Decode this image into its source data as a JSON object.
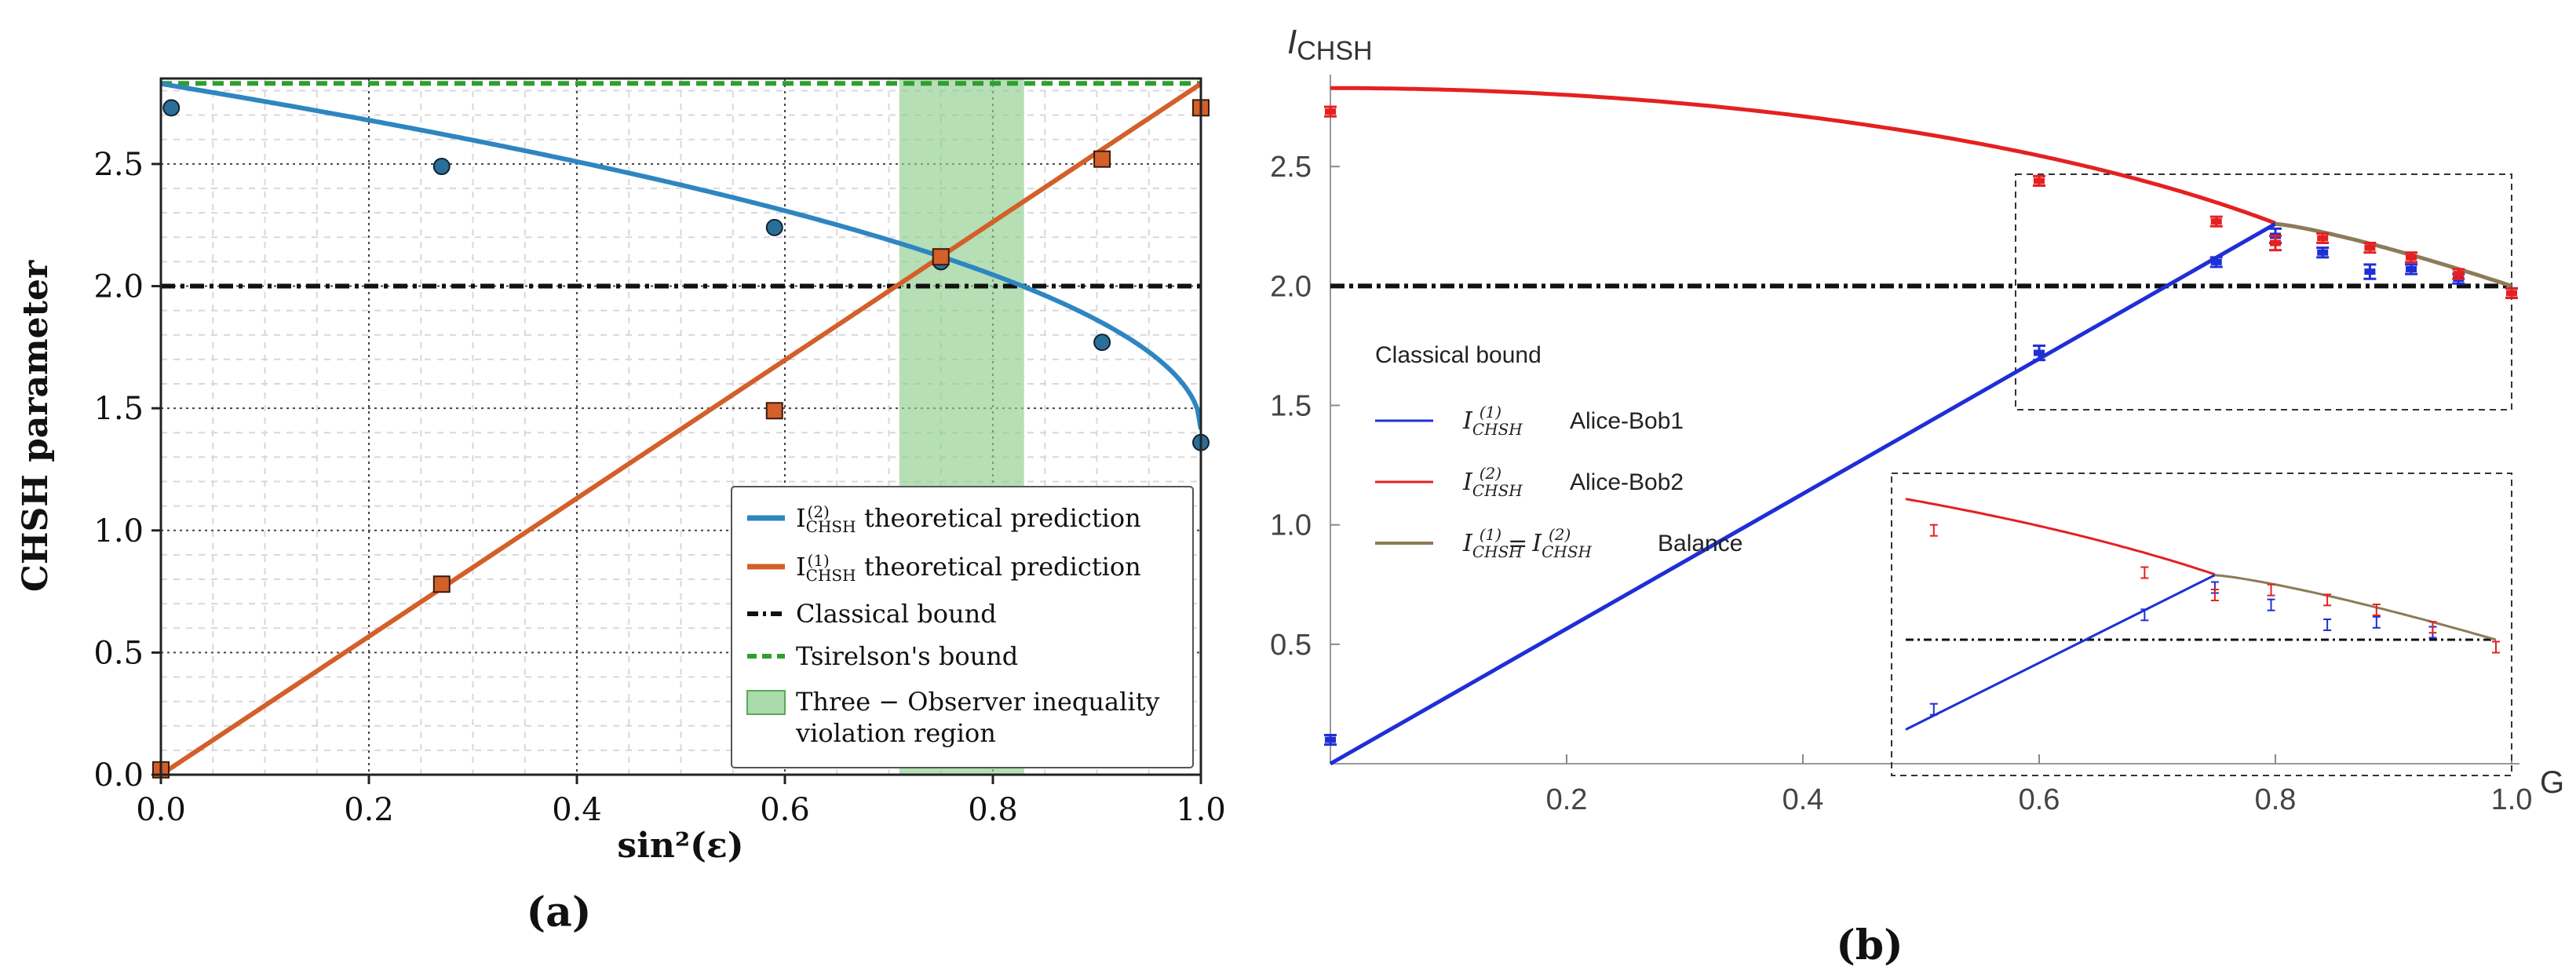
{
  "chart_data": [
    {
      "id": "a",
      "type": "line",
      "panel_label": "(a)",
      "xlabel": "sin²(ε)",
      "ylabel": "CHSH parameter",
      "xlim": [
        0,
        1
      ],
      "ylim": [
        0,
        2.85
      ],
      "xticks": [
        "0.0",
        "0.2",
        "0.4",
        "0.6",
        "0.8",
        "1.0"
      ],
      "xtick_values": [
        0,
        0.2,
        0.4,
        0.6,
        0.8,
        1.0
      ],
      "yticks": [
        "0.0",
        "0.5",
        "1.0",
        "1.5",
        "2.0",
        "2.5"
      ],
      "ytick_values": [
        0,
        0.5,
        1.0,
        1.5,
        2.0,
        2.5
      ],
      "grid": true,
      "legend_position": "bottom-right",
      "region": {
        "x_from": 0.71,
        "x_to": 0.83,
        "color": "#8fce8f"
      },
      "classical_bound": 2.0,
      "tsirelson_bound": 2.83,
      "theory_i2": {
        "color": "#2e86c1"
      },
      "theory_i1": {
        "color": "#d35f29"
      },
      "series": [
        {
          "name": "I_CHSH^(2) data",
          "marker": "circle",
          "color": "#2a6f97",
          "x": [
            0.01,
            0.27,
            0.59,
            0.75,
            0.905,
            1.0
          ],
          "y": [
            2.73,
            2.49,
            2.24,
            2.1,
            1.77,
            1.36
          ]
        },
        {
          "name": "I_CHSH^(1) data",
          "marker": "square",
          "color": "#d35f29",
          "x": [
            0.0,
            0.27,
            0.59,
            0.75,
            0.905,
            1.0
          ],
          "y": [
            0.02,
            0.78,
            1.49,
            2.12,
            2.52,
            2.73
          ]
        }
      ],
      "legend": {
        "i2": {
          "main": "I",
          "sub": "CHSH",
          "sup": "(2)",
          "text": "theoretical prediction"
        },
        "i1": {
          "main": "I",
          "sub": "CHSH",
          "sup": "(1)",
          "text": "theoretical prediction"
        },
        "classical": "Classical bound",
        "tsirelson": "Tsirelson's bound",
        "region_line1": "Three − Observer inequality",
        "region_line2": "violation region"
      }
    },
    {
      "id": "b",
      "type": "line",
      "panel_label": "(b)",
      "xlabel": "G",
      "ylabel": {
        "main": "I",
        "sub": "CHSH"
      },
      "xlim": [
        0,
        1
      ],
      "ylim": [
        0,
        3.0
      ],
      "xticks": [
        "0.2",
        "0.4",
        "0.6",
        "0.8",
        "1.0"
      ],
      "xtick_values": [
        0.2,
        0.4,
        0.6,
        0.8,
        1.0
      ],
      "yticks": [
        "0.5",
        "1.0",
        "1.5",
        "2.0",
        "2.5"
      ],
      "ytick_values": [
        0.5,
        1.0,
        1.5,
        2.0,
        2.5
      ],
      "classical_bound": 2.0,
      "colors": {
        "alice_bob1": "#1f2fd6",
        "alice_bob2": "#e52020",
        "balance": "#8b7b57"
      },
      "series": [
        {
          "name": "Alice-Bob1 data",
          "color": "#1f2fd6",
          "x": [
            0.0,
            0.6,
            0.75,
            0.8,
            0.84,
            0.88,
            0.915,
            0.955,
            1.0
          ],
          "y": [
            0.1,
            1.72,
            2.1,
            2.21,
            2.14,
            2.06,
            2.07,
            2.03,
            1.97
          ],
          "err": [
            0.02,
            0.03,
            0.02,
            0.03,
            0.02,
            0.03,
            0.02,
            0.02,
            0.02
          ]
        },
        {
          "name": "Alice-Bob2 data",
          "color": "#e52020",
          "x": [
            0.0,
            0.6,
            0.75,
            0.8,
            0.84,
            0.88,
            0.915,
            0.955,
            1.0
          ],
          "y": [
            2.73,
            2.44,
            2.27,
            2.18,
            2.2,
            2.16,
            2.12,
            2.05,
            1.97
          ],
          "err": [
            0.02,
            0.02,
            0.02,
            0.03,
            0.02,
            0.02,
            0.02,
            0.02,
            0.02
          ]
        }
      ],
      "legend": {
        "classical": "Classical bound",
        "i1": {
          "main": "I",
          "sub": "CHSH",
          "sup": "(1)",
          "text": "Alice-Bob1"
        },
        "i2": {
          "main": "I",
          "sub": "CHSH",
          "sup": "(2)",
          "text": "Alice-Bob2"
        },
        "balance": {
          "main": "I",
          "sub": "CHSH",
          "sup1": "(1)",
          "sup2": "(2)",
          "eq": "=",
          "text": "Balance"
        }
      }
    }
  ]
}
